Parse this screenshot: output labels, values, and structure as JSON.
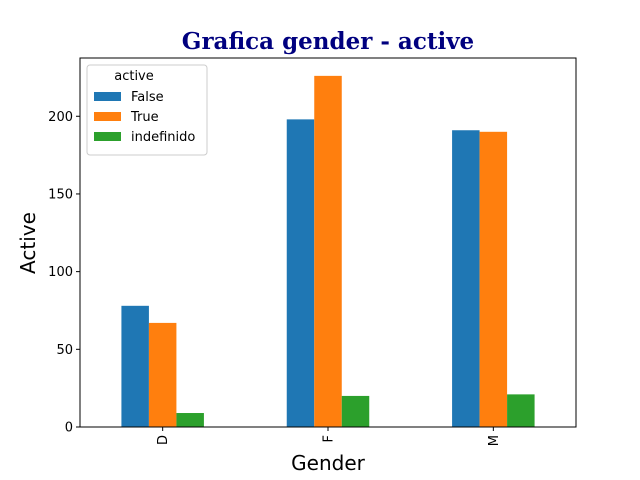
{
  "chart_data": {
    "type": "bar",
    "title": "Grafica gender - active",
    "xlabel": "Gender",
    "ylabel": "Active",
    "categories": [
      "D",
      "F",
      "M"
    ],
    "yticks": [
      0,
      50,
      100,
      150,
      200
    ],
    "ylim": [
      0,
      237.5
    ],
    "legend_title": "active",
    "legend_position": "top-left",
    "grid": false,
    "series": [
      {
        "name": "False",
        "color": "#1f77b4",
        "values": [
          78,
          198,
          191
        ]
      },
      {
        "name": "True",
        "color": "#ff7f0e",
        "values": [
          67,
          226,
          190
        ]
      },
      {
        "name": "indefinido",
        "color": "#2ca02c",
        "values": [
          9,
          20,
          21
        ]
      }
    ]
  }
}
